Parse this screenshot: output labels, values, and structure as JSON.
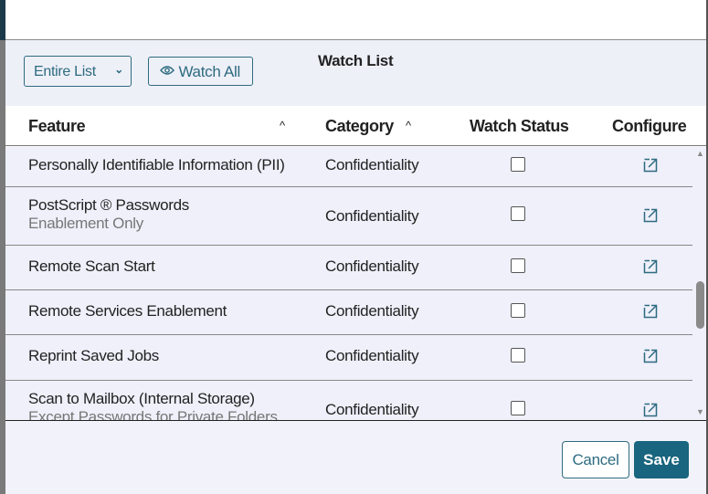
{
  "toolbar": {
    "filter_value": "Entire List",
    "watch_all_label": "Watch All",
    "title": "Watch List"
  },
  "columns": {
    "feature": "Feature",
    "category": "Category",
    "watch_status": "Watch Status",
    "configure": "Configure"
  },
  "rows": [
    {
      "feature": "Personally Identifiable Information (PII)",
      "sub": "",
      "category": "Confidentiality",
      "watched": false
    },
    {
      "feature": "PostScript ® Passwords",
      "sub": "Enablement Only",
      "category": "Confidentiality",
      "watched": false
    },
    {
      "feature": "Remote Scan Start",
      "sub": "",
      "category": "Confidentiality",
      "watched": false
    },
    {
      "feature": "Remote Services Enablement",
      "sub": "",
      "category": "Confidentiality",
      "watched": false
    },
    {
      "feature": "Reprint Saved Jobs",
      "sub": "",
      "category": "Confidentiality",
      "watched": false
    },
    {
      "feature": "Scan to Mailbox (Internal Storage)",
      "sub": "Except Passwords for Private Folders",
      "category": "Confidentiality",
      "watched": false
    }
  ],
  "footer": {
    "cancel_label": "Cancel",
    "save_label": "Save"
  },
  "colors": {
    "accent": "#19647e",
    "outline": "#2e6b80"
  }
}
